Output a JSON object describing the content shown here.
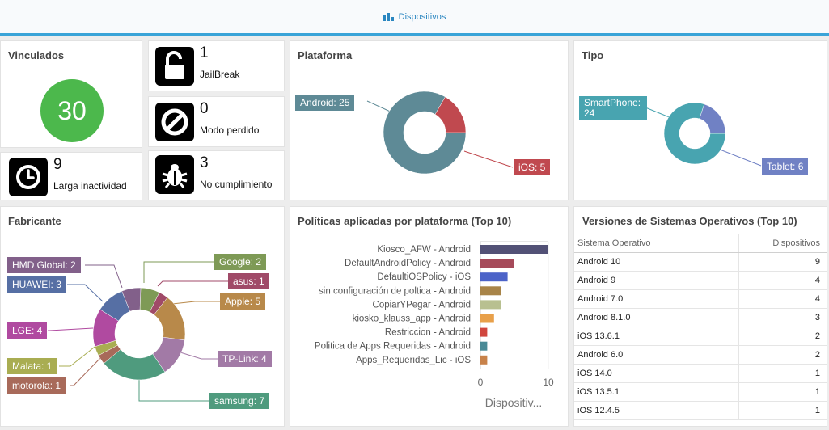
{
  "topbar": {
    "tab_label": "Dispositivos",
    "icon": "bar-chart-icon"
  },
  "vinculados": {
    "title": "Vinculados",
    "count": "30",
    "color": "#4cb84c"
  },
  "tiles": {
    "jailbreak": {
      "count": "1",
      "label": "JailBreak",
      "icon": "unlocked-padlock-icon"
    },
    "modo_perdido": {
      "count": "0",
      "label": "Modo perdido",
      "icon": "block-icon"
    },
    "larga_inactividad": {
      "count": "9",
      "label": "Larga inactividad",
      "icon": "clock-icon"
    },
    "no_cumplimiento": {
      "count": "3",
      "label": "No cumplimiento",
      "icon": "bug-icon"
    }
  },
  "plataforma": {
    "title": "Plataforma",
    "chart_data": {
      "type": "pie",
      "categories": [
        "Android",
        "iOS"
      ],
      "values": [
        25,
        5
      ],
      "labels": [
        "Android: 25",
        "iOS: 5"
      ],
      "colors": [
        "#5e8a96",
        "#c0494f"
      ]
    }
  },
  "tipo": {
    "title": "Tipo",
    "chart_data": {
      "type": "pie",
      "categories": [
        "SmartPhone",
        "Tablet"
      ],
      "values": [
        24,
        6
      ],
      "labels": [
        "SmartPhone: 24",
        "Tablet: 6"
      ],
      "colors": [
        "#48a4b0",
        "#7081c4"
      ]
    }
  },
  "fabricante": {
    "title": "Fabricante",
    "chart_data": {
      "type": "pie",
      "categories": [
        "Google",
        "asus",
        "Apple",
        "TP-Link",
        "samsung",
        "motorola",
        "Malata",
        "LGE",
        "HUAWEI",
        "HMD Global"
      ],
      "values": [
        2,
        1,
        5,
        4,
        7,
        1,
        1,
        4,
        3,
        2
      ],
      "labels": [
        "Google: 2",
        "asus: 1",
        "Apple: 5",
        "TP-Link: 4",
        "samsung: 7",
        "motorola: 1",
        "Malata: 1",
        "LGE: 4",
        "HUAWEI: 3",
        "HMD Global: 2"
      ],
      "colors": [
        "#7e9a56",
        "#a04a68",
        "#b8894a",
        "#a27aa6",
        "#4f9b7e",
        "#a86a5a",
        "#a9ad52",
        "#b04aa0",
        "#566fa4",
        "#82608a"
      ]
    }
  },
  "politicas": {
    "title": "Políticas aplicadas por plataforma (Top 10)",
    "chart_data": {
      "type": "bar",
      "orientation": "horizontal",
      "categories": [
        "Kiosco_AFW - Android",
        "DefaultAndroidPolicy - Android",
        "DefaultiOSPolicy - iOS",
        "sin configuración de poltica - Android",
        "CopiarYPegar - Android",
        "kiosko_klauss_app - Android",
        "Restriccion - Android",
        "Politica de Apps Requeridas - Android",
        "Apps_Requeridas_Lic - iOS"
      ],
      "values": [
        10,
        5,
        4,
        3,
        3,
        2,
        1,
        1,
        1
      ],
      "colors": [
        "#525176",
        "#a64a5a",
        "#4c63c8",
        "#a88448",
        "#b8c090",
        "#e8a04a",
        "#d0463e",
        "#4a8a96",
        "#c8824a"
      ],
      "xlim": [
        0,
        10
      ],
      "xticks": [
        "0",
        "10"
      ],
      "xlabel": "Dispositiv..."
    }
  },
  "versiones": {
    "title": "Versiones de Sistemas Operativos (Top 10)",
    "columns": [
      "Sistema Operativo",
      "Dispositivos"
    ],
    "rows": [
      {
        "name": "Android 10",
        "count": "9"
      },
      {
        "name": "Android 9",
        "count": "4"
      },
      {
        "name": "Android 7.0",
        "count": "4"
      },
      {
        "name": "Android 8.1.0",
        "count": "3"
      },
      {
        "name": "iOS 13.6.1",
        "count": "2"
      },
      {
        "name": "Android 6.0",
        "count": "2"
      },
      {
        "name": "iOS 14.0",
        "count": "1"
      },
      {
        "name": "iOS 13.5.1",
        "count": "1"
      },
      {
        "name": "iOS 12.4.5",
        "count": "1"
      }
    ]
  }
}
